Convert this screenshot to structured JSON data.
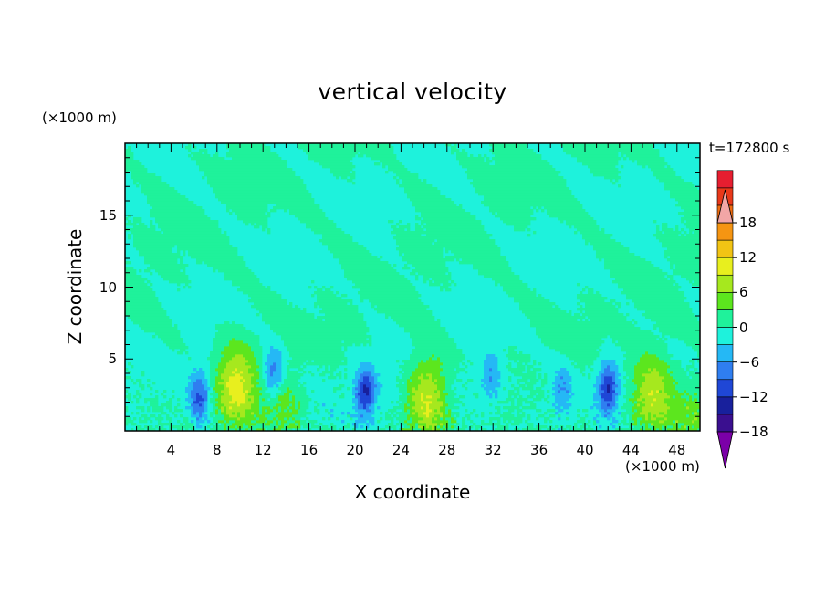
{
  "chart_data": {
    "type": "heatmap",
    "title": "vertical velocity",
    "annotation": "t=172800 s",
    "xlabel": "X coordinate",
    "ylabel": "Z coordinate",
    "x_unit": "(×1000 m)",
    "y_unit": "(×1000 m)",
    "xlim": [
      0,
      50
    ],
    "ylim": [
      0,
      20
    ],
    "x_ticks": [
      4,
      8,
      12,
      16,
      20,
      24,
      28,
      32,
      36,
      40,
      44,
      48
    ],
    "y_ticks": [
      5,
      10,
      15
    ],
    "colorbar": {
      "range": [
        -21,
        21
      ],
      "step": 3,
      "tick_labels": [
        "18",
        "12",
        "6",
        "0",
        "−6",
        "−12",
        "−18"
      ],
      "tick_values": [
        18,
        12,
        6,
        0,
        -6,
        -12,
        -18
      ],
      "colors": [
        "#7b00a8",
        "#3a0f8f",
        "#18209c",
        "#1f47d6",
        "#2f7ef0",
        "#25b8f5",
        "#1ef2dc",
        "#1ff29b",
        "#5ce61e",
        "#a6e81e",
        "#e8ef1e",
        "#f2c414",
        "#f59512",
        "#ef6b10",
        "#e8381a",
        "#e61e30",
        "#f2a6a6"
      ],
      "extend": "both"
    },
    "features": [
      {
        "kind": "updraft",
        "x": 9.7,
        "z": 3.3,
        "peak": 14
      },
      {
        "kind": "updraft",
        "x": 26.3,
        "z": 2.6,
        "peak": 12
      },
      {
        "kind": "updraft",
        "x": 45.8,
        "z": 2.8,
        "peak": 12
      },
      {
        "kind": "updraft",
        "x": 13.7,
        "z": 2.2,
        "peak": 6
      },
      {
        "kind": "updraft",
        "x": 49.2,
        "z": 1.6,
        "peak": 6
      },
      {
        "kind": "downdraft",
        "x": 6.5,
        "z": 2.3,
        "peak": -9
      },
      {
        "kind": "downdraft",
        "x": 12.9,
        "z": 4.0,
        "peak": -8
      },
      {
        "kind": "downdraft",
        "x": 20.9,
        "z": 2.7,
        "peak": -12
      },
      {
        "kind": "downdraft",
        "x": 31.9,
        "z": 3.8,
        "peak": -6
      },
      {
        "kind": "downdraft",
        "x": 42.0,
        "z": 3.0,
        "peak": -11
      },
      {
        "kind": "downdraft",
        "x": 38.0,
        "z": 2.9,
        "peak": -6
      }
    ]
  }
}
